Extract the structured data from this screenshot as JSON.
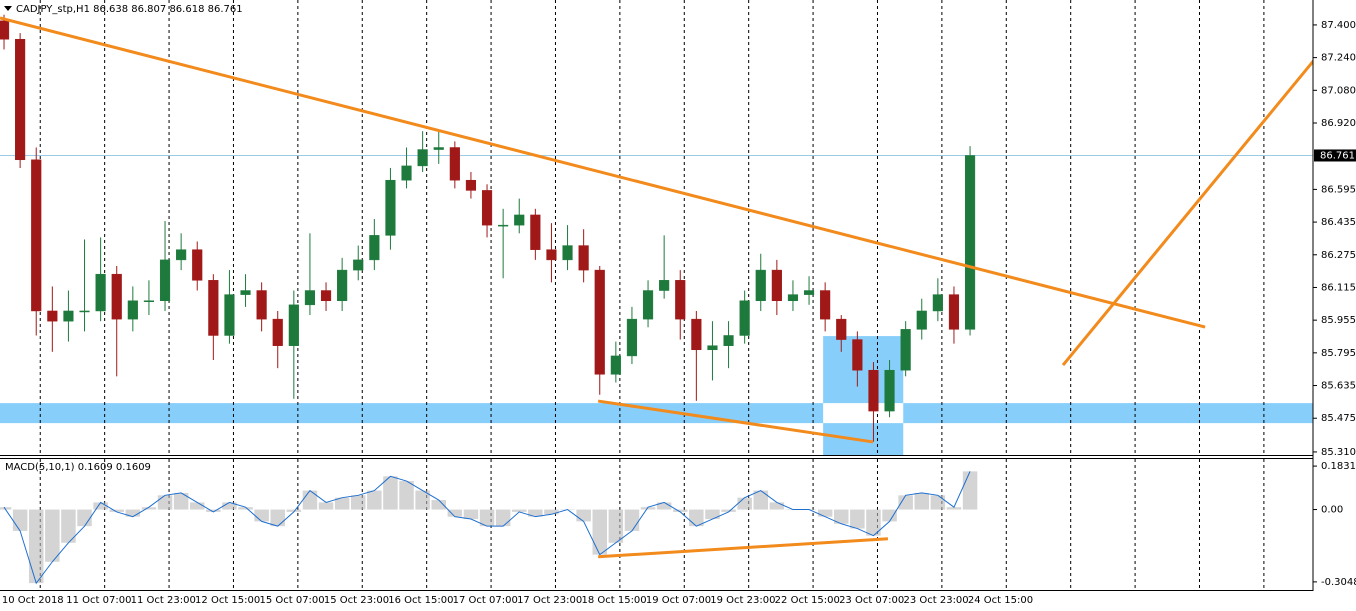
{
  "chart_data": [
    {
      "type": "candlestick",
      "title": "CADJPY_stp,H1 86.638 86.807 86.618 86.761",
      "x": [
        0,
        4,
        8,
        12,
        16,
        20,
        24,
        28,
        32,
        36,
        40,
        44,
        48,
        52,
        56,
        60,
        64,
        68,
        72,
        76,
        80,
        84,
        88,
        92,
        96,
        100,
        104,
        108,
        112,
        116,
        120,
        124,
        128,
        132,
        136,
        140,
        144,
        148,
        152,
        156,
        160,
        164,
        168,
        172,
        176,
        180,
        184,
        188,
        192,
        196,
        200,
        204,
        208,
        212,
        216,
        220,
        224,
        228,
        232,
        236,
        240
      ],
      "open": [
        87.42,
        87.33,
        86.74,
        86.0,
        85.95,
        86.0,
        86.0,
        86.18,
        85.96,
        86.05,
        86.05,
        86.25,
        86.3,
        86.15,
        85.88,
        86.08,
        86.1,
        85.96,
        85.83,
        86.03,
        86.1,
        86.05,
        86.2,
        86.25,
        86.37,
        86.64,
        86.71,
        86.79,
        86.8,
        86.64,
        86.59,
        86.42,
        86.42,
        86.47,
        86.3,
        86.25,
        86.32,
        86.2,
        85.69,
        85.78,
        85.96,
        86.1,
        86.15,
        85.96,
        85.81,
        85.83,
        85.88,
        86.05,
        86.2,
        86.05,
        86.08,
        86.1,
        85.96,
        85.86,
        85.71,
        85.51,
        85.71,
        85.91,
        86.0,
        86.08,
        85.91
      ],
      "high": [
        87.45,
        87.36,
        86.8,
        86.12,
        86.1,
        86.35,
        86.36,
        86.22,
        86.12,
        86.15,
        86.44,
        86.38,
        86.34,
        86.18,
        86.2,
        86.18,
        86.14,
        86.0,
        86.1,
        86.38,
        86.14,
        86.26,
        86.32,
        86.45,
        86.7,
        86.8,
        86.88,
        86.88,
        86.83,
        86.68,
        86.62,
        86.5,
        86.55,
        86.5,
        86.43,
        86.42,
        86.4,
        86.22,
        85.85,
        86.02,
        86.15,
        86.37,
        86.2,
        86.0,
        85.95,
        85.95,
        86.1,
        86.28,
        86.25,
        86.15,
        86.17,
        86.14,
        85.98,
        85.9,
        85.75,
        85.76,
        85.95,
        86.06,
        86.16,
        86.12,
        86.807
      ],
      "low": [
        87.28,
        86.7,
        85.88,
        85.8,
        85.85,
        85.9,
        85.95,
        85.68,
        85.9,
        85.98,
        86.0,
        86.2,
        86.1,
        85.76,
        85.84,
        86.02,
        85.9,
        85.72,
        85.57,
        85.98,
        86.0,
        86.0,
        86.15,
        86.2,
        86.3,
        86.6,
        86.68,
        86.72,
        86.6,
        86.55,
        86.36,
        86.16,
        86.38,
        86.25,
        86.14,
        86.2,
        86.14,
        85.59,
        85.65,
        85.74,
        85.92,
        86.06,
        85.86,
        85.56,
        85.66,
        85.72,
        85.84,
        86.0,
        85.98,
        86.0,
        86.03,
        85.9,
        85.8,
        85.63,
        85.36,
        85.48,
        85.68,
        85.86,
        85.95,
        85.84,
        85.88
      ],
      "close": [
        87.33,
        86.74,
        86.0,
        85.95,
        86.0,
        86.0,
        86.18,
        85.96,
        86.05,
        86.05,
        86.25,
        86.3,
        86.15,
        85.88,
        86.08,
        86.1,
        85.96,
        85.83,
        86.03,
        86.1,
        86.05,
        86.2,
        86.25,
        86.37,
        86.64,
        86.71,
        86.79,
        86.8,
        86.64,
        86.59,
        86.42,
        86.42,
        86.47,
        86.3,
        86.25,
        86.32,
        86.2,
        85.69,
        85.78,
        85.96,
        86.1,
        86.15,
        85.96,
        85.81,
        85.83,
        85.88,
        86.05,
        86.2,
        86.05,
        86.08,
        86.1,
        85.96,
        85.86,
        85.71,
        85.51,
        85.71,
        85.91,
        86.0,
        86.08,
        85.91,
        86.761
      ],
      "up_color": "#1e7a3c",
      "down_color": "#a01818",
      "xlim": [
        -1,
        325.2
      ],
      "ylim": [
        85.295,
        87.522
      ],
      "yticks": [
        {
          "value": 87.4,
          "label": "87.400"
        },
        {
          "value": 87.24,
          "label": "87.240"
        },
        {
          "value": 87.08,
          "label": "87.080"
        },
        {
          "value": 86.92,
          "label": "86.920"
        },
        {
          "value": 86.595,
          "label": "86.595"
        },
        {
          "value": 86.435,
          "label": "86.435"
        },
        {
          "value": 86.275,
          "label": "86.275"
        },
        {
          "value": 86.115,
          "label": "86.115"
        },
        {
          "value": 85.955,
          "label": "85.955"
        },
        {
          "value": 85.795,
          "label": "85.795"
        },
        {
          "value": 85.635,
          "label": "85.635"
        },
        {
          "value": 85.475,
          "label": "85.475"
        },
        {
          "value": 85.31,
          "label": "85.310"
        }
      ],
      "xticks": [
        {
          "value": -7,
          "label": "10 Oct 2018"
        },
        {
          "value": 9,
          "label": "11 Oct 07:00"
        },
        {
          "value": 25,
          "label": "11 Oct 23:00"
        },
        {
          "value": 41,
          "label": "12 Oct 15:00"
        },
        {
          "value": 57,
          "label": "15 Oct 07:00"
        },
        {
          "value": 73,
          "label": "15 Oct 23:00"
        },
        {
          "value": 89,
          "label": "16 Oct 15:00"
        },
        {
          "value": 105,
          "label": "17 Oct 07:00"
        },
        {
          "value": 121,
          "label": "17 Oct 23:00"
        },
        {
          "value": 137,
          "label": "18 Oct 15:00"
        },
        {
          "value": 153,
          "label": "19 Oct 07:00"
        },
        {
          "value": 169,
          "label": "19 Oct 23:00"
        },
        {
          "value": 185,
          "label": "22 Oct 15:00"
        },
        {
          "value": 201,
          "label": "23 Oct 07:00"
        },
        {
          "value": 217,
          "label": "23 Oct 23:00"
        },
        {
          "value": 233,
          "label": "24 Oct 15:00"
        },
        {
          "value": 249,
          "label": null
        },
        {
          "value": 265,
          "label": null
        },
        {
          "value": 281,
          "label": null
        },
        {
          "value": 297,
          "label": null
        },
        {
          "value": 313,
          "label": null
        }
      ],
      "grid": true,
      "current_price": 86.761,
      "current_price_color": "#9ccbe8",
      "trendlines": [
        {
          "x": [
            -1,
            298.4
          ],
          "y": [
            87.434,
            85.921
          ]
        },
        {
          "x": [
            263.1,
            325.9
          ],
          "y": [
            85.735,
            87.238
          ]
        },
        {
          "x": [
            147.6,
            215.9
          ],
          "y": [
            85.559,
            85.359
          ]
        }
      ],
      "trendline_color": "#f28a1c",
      "zones": [
        {
          "y": [
            85.451,
            85.549
          ]
        },
        {
          "x": [
            203.5,
            223.4
          ],
          "y": [
            85.295,
            85.877
          ]
        }
      ],
      "zone_color": "#87cefa"
    },
    {
      "type": "macd",
      "title": "MACD(5,10,1) 0.1609 0.1609",
      "values": [
        0.01,
        -0.09,
        -0.31,
        -0.22,
        -0.14,
        -0.07,
        0.03,
        -0.01,
        -0.03,
        0.01,
        0.06,
        0.07,
        0.03,
        -0.01,
        0.03,
        0.01,
        -0.05,
        -0.07,
        -0.01,
        0.08,
        0.03,
        0.05,
        0.06,
        0.08,
        0.14,
        0.12,
        0.08,
        0.04,
        -0.03,
        -0.04,
        -0.07,
        -0.07,
        -0.01,
        -0.03,
        -0.02,
        0,
        -0.05,
        -0.19,
        -0.14,
        -0.09,
        0.01,
        0.03,
        -0.01,
        -0.07,
        -0.04,
        -0.01,
        0.05,
        0.08,
        0.03,
        0,
        0,
        -0.03,
        -0.06,
        -0.08,
        -0.11,
        -0.05,
        0.06,
        0.07,
        0.06,
        0.01,
        0.1609
      ],
      "color": "#1e6fd0",
      "hist_color": "#b8b8b8",
      "ylim": [
        -0.339,
        0.213
      ],
      "yticks": [
        0.1831,
        {
          "value": 0,
          "label": "0.00"
        },
        -0.3048
      ],
      "trendlines": [
        {
          "x": [
            147.6,
            219.6
          ],
          "y": [
            -0.199,
            -0.123
          ]
        }
      ]
    }
  ]
}
